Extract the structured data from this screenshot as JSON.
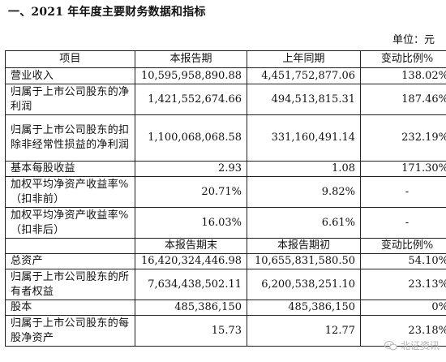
{
  "title": "一、2021 年年度主要财务数据和指标",
  "unit": "单位：元",
  "header1": [
    "项目",
    "本报告期",
    "上年同期",
    "变动比例%"
  ],
  "rows1": [
    {
      "label": "营业收入",
      "cur": "10,595,958,890.88",
      "prev": "4,451,752,877.06",
      "chg": "138.02%"
    },
    {
      "label": "归属于上市公司股东的净利润",
      "cur": "1,421,552,674.66",
      "prev": "494,513,815.31",
      "chg": "187.46%"
    },
    {
      "label": "归属于上市公司股东的扣除非经常性损益的净利润",
      "cur": "1,100,068,068.58",
      "prev": "331,160,491.14",
      "chg": "232.19%"
    },
    {
      "label": "基本每股收益",
      "cur": "2.93",
      "prev": "1.08",
      "chg": "171.30%"
    },
    {
      "label": "加权平均净资产收益率%（扣非前）",
      "cur": "20.71%",
      "prev": "9.82%",
      "chg": "-"
    },
    {
      "label": "加权平均净资产收益率%（扣非后）",
      "cur": "16.03%",
      "prev": "6.61%",
      "chg": "-"
    }
  ],
  "header2": [
    "",
    "本报告期末",
    "本报告期初",
    "变动比例%"
  ],
  "rows2": [
    {
      "label": "总资产",
      "cur": "16,420,324,446.98",
      "prev": "10,655,831,580.50",
      "chg": "54.10%"
    },
    {
      "label": "归属于上市公司股东的所有者权益",
      "cur": "7,634,438,502.11",
      "prev": "6,200,538,251.10",
      "chg": "23.13%"
    },
    {
      "label": "股本",
      "cur": "485,386,150",
      "prev": "485,386,150",
      "chg": "0%"
    },
    {
      "label": "归属于上市公司股东的每股净资产",
      "cur": "15.73",
      "prev": "12.77",
      "chg": "23.18%"
    }
  ],
  "watermark": "北证资讯"
}
